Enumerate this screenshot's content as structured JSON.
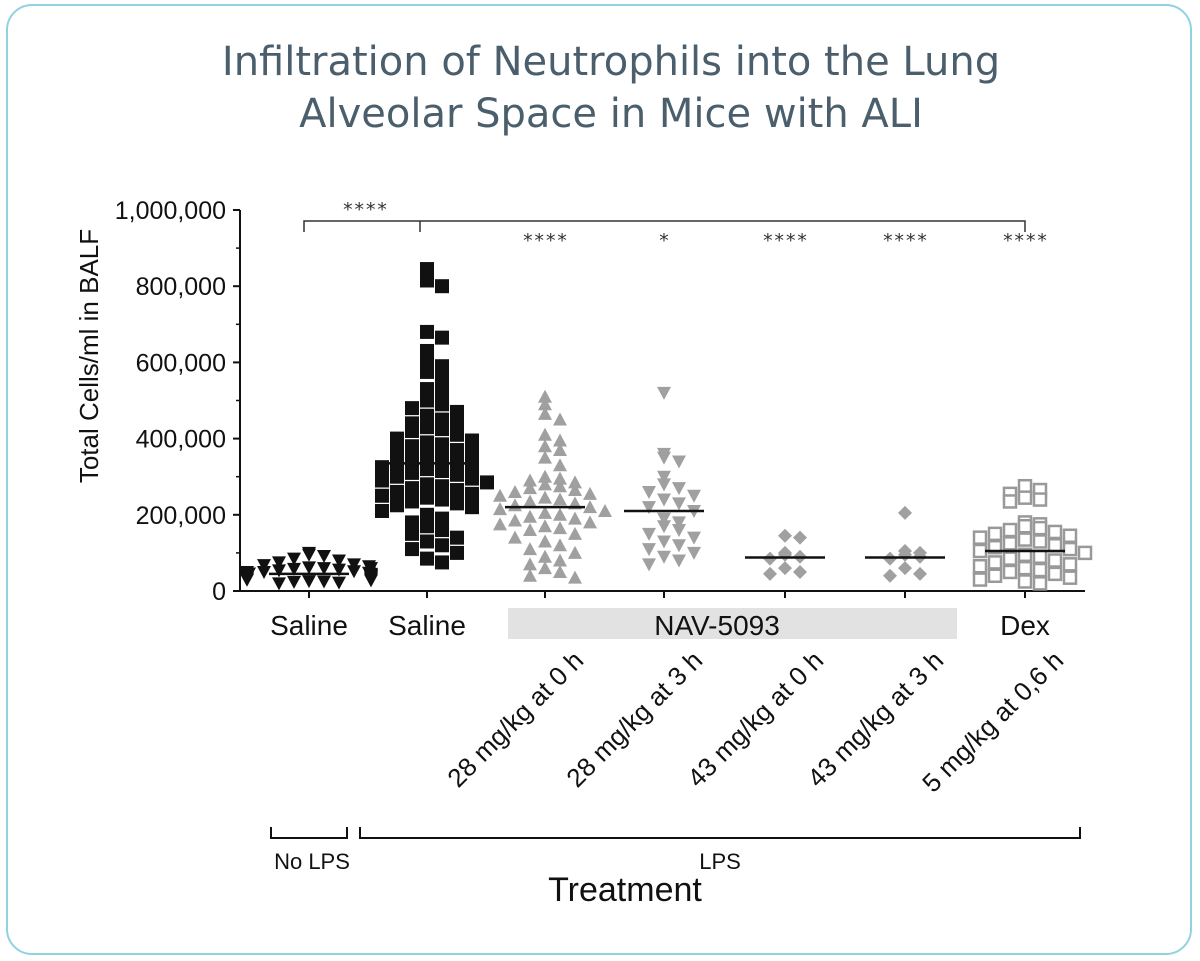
{
  "chart_data": {
    "type": "scatter",
    "title_lines": [
      "Infiltration of Neutrophils into the Lung",
      "Alveolar Space in Mice with ALI"
    ],
    "ylabel": "Total Cells/ml in BALF",
    "xlabel": "Treatment",
    "ylim": [
      0,
      1000000
    ],
    "yticks": [
      {
        "value": 0,
        "label": "0"
      },
      {
        "value": 200000,
        "label": "200,000"
      },
      {
        "value": 400000,
        "label": "400,000"
      },
      {
        "value": 600000,
        "label": "600,000"
      },
      {
        "value": 800000,
        "label": "800,000"
      },
      {
        "value": 1000000,
        "label": "1,000,000"
      }
    ],
    "group_labels": [
      {
        "text": "Saline",
        "group": 0
      },
      {
        "text": "Saline",
        "group": 1
      },
      {
        "text": "NAV-5093",
        "group_span": [
          2,
          5
        ]
      },
      {
        "text": "Dex",
        "group": 6
      }
    ],
    "lps_labels": {
      "no_lps": "No LPS",
      "lps": "LPS"
    },
    "significance": {
      "bracket_label": "****",
      "per_group": [
        "",
        "",
        "****",
        "*",
        "****",
        "****",
        "****"
      ]
    },
    "series": [
      {
        "name": "Saline",
        "marker": "triangle-down",
        "color": "#111111",
        "mean": 45000,
        "values": [
          100000,
          95000,
          92000,
          85000,
          80000,
          75000,
          70000,
          68000,
          65000,
          62000,
          60000,
          58000,
          56000,
          54000,
          52000,
          50000,
          48000,
          46000,
          45000,
          44000,
          42000,
          40000,
          38000,
          36000,
          35000,
          34000,
          32000,
          30000,
          28000,
          26000,
          25000,
          24000,
          22000,
          20000,
          30000,
          40000,
          50000,
          60000
        ]
      },
      {
        "name": "Saline",
        "dose": "",
        "marker": "square",
        "color": "#111111",
        "mean": 335000,
        "values": [
          845000,
          815000,
          800000,
          680000,
          665000,
          630000,
          600000,
          590000,
          575000,
          555000,
          530000,
          520000,
          500000,
          490000,
          480000,
          470000,
          460000,
          450000,
          440000,
          435000,
          430000,
          425000,
          420000,
          410000,
          400000,
          395000,
          390000,
          385000,
          380000,
          370000,
          365000,
          360000,
          355000,
          350000,
          345000,
          340000,
          335000,
          330000,
          325000,
          320000,
          315000,
          310000,
          305000,
          300000,
          295000,
          290000,
          285000,
          280000,
          275000,
          270000,
          265000,
          260000,
          255000,
          250000,
          245000,
          240000,
          235000,
          230000,
          225000,
          220000,
          210000,
          200000,
          190000,
          180000,
          170000,
          160000,
          150000,
          140000,
          130000,
          120000,
          110000,
          100000,
          85000,
          75000
        ]
      },
      {
        "name": "28 mg/kg at 0 h",
        "marker": "triangle-up",
        "color": "#a0a0a0",
        "mean": 220000,
        "values": [
          510000,
          490000,
          465000,
          450000,
          410000,
          395000,
          380000,
          370000,
          350000,
          330000,
          300000,
          295000,
          290000,
          285000,
          280000,
          275000,
          270000,
          265000,
          260000,
          255000,
          250000,
          245000,
          240000,
          235000,
          230000,
          225000,
          220000,
          215000,
          210000,
          205000,
          200000,
          195000,
          190000,
          185000,
          180000,
          175000,
          170000,
          165000,
          160000,
          150000,
          140000,
          130000,
          120000,
          110000,
          100000,
          90000,
          80000,
          70000,
          60000,
          50000,
          40000,
          35000
        ]
      },
      {
        "name": "28 mg/kg at 3 h",
        "marker": "triangle-down",
        "color": "#a0a0a0",
        "mean": 210000,
        "values": [
          520000,
          360000,
          350000,
          340000,
          300000,
          280000,
          270000,
          260000,
          250000,
          240000,
          230000,
          220000,
          210000,
          190000,
          180000,
          170000,
          160000,
          150000,
          140000,
          130000,
          120000,
          110000,
          100000,
          90000,
          80000,
          70000
        ]
      },
      {
        "name": "43 mg/kg at 0 h",
        "marker": "diamond",
        "color": "#a0a0a0",
        "mean": 88000,
        "values": [
          145000,
          140000,
          100000,
          95000,
          90000,
          85000,
          60000,
          50000,
          45000
        ]
      },
      {
        "name": "43 mg/kg at 3 h",
        "marker": "diamond",
        "color": "#a0a0a0",
        "mean": 88000,
        "values": [
          205000,
          105000,
          100000,
          95000,
          90000,
          85000,
          60000,
          45000,
          40000
        ]
      },
      {
        "name": "5 mg/kg at 0,6 h",
        "marker": "square-open",
        "color": "#999999",
        "mean": 105000,
        "values": [
          275000,
          265000,
          255000,
          245000,
          240000,
          235000,
          180000,
          175000,
          170000,
          165000,
          160000,
          155000,
          150000,
          145000,
          140000,
          135000,
          130000,
          125000,
          120000,
          115000,
          110000,
          105000,
          100000,
          95000,
          90000,
          85000,
          80000,
          75000,
          70000,
          65000,
          60000,
          55000,
          50000,
          45000,
          40000,
          35000,
          30000,
          25000,
          20000
        ]
      }
    ]
  }
}
